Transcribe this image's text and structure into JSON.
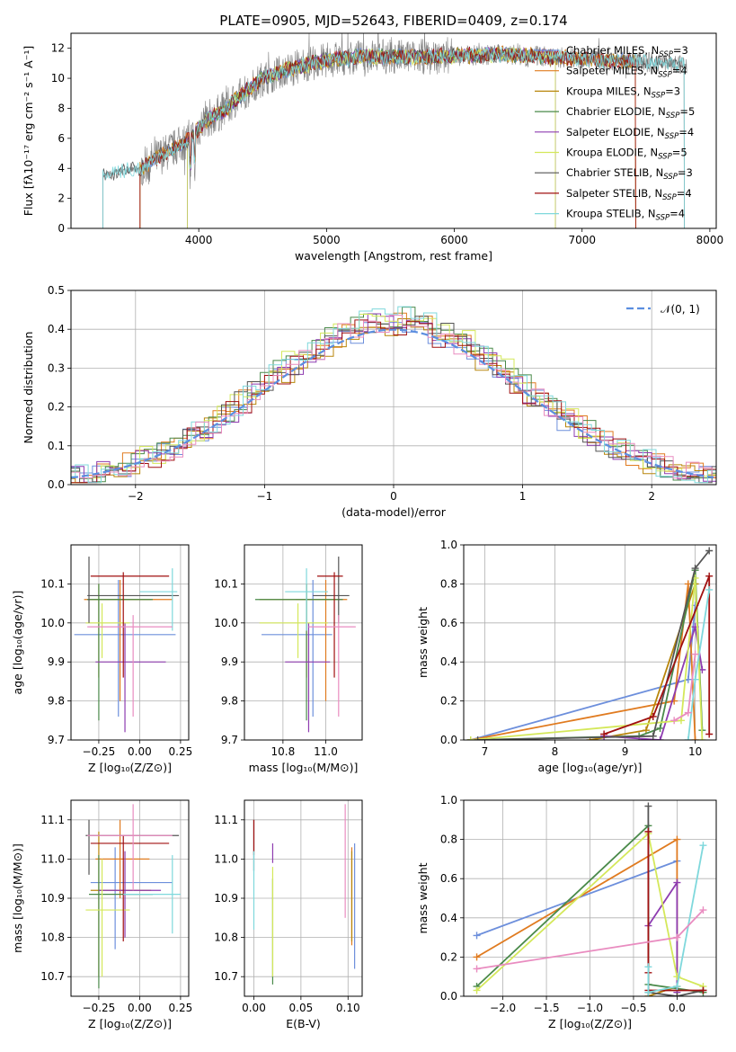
{
  "figure_title": "PLATE=0905, MJD=52643, FIBERID=0409, z=0.174",
  "colors": {
    "chabrier_miles": "#6d8fdc",
    "salpeter_miles": "#e07b20",
    "kroupa_miles": "#b8860b",
    "chabrier_elodie": "#4a8a4a",
    "salpeter_elodie": "#8e3cb0",
    "kroupa_elodie": "#d4e85a",
    "chabrier_stelib": "#555555",
    "salpeter_stelib": "#a01010",
    "kroupa_stelib": "#7fd8dc",
    "pink": "#e98cc0",
    "data": "#808080",
    "normal": "#5b8ee0",
    "grid": "#b0b0b0"
  },
  "chart_data": [
    {
      "id": "spectrum",
      "type": "line",
      "title": "PLATE=0905, MJD=52643, FIBERID=0409, z=0.174",
      "xlabel": "wavelength [Angstrom, rest frame]",
      "ylabel": "Flux [fλ10⁻¹⁷ erg cm⁻² s⁻¹ A⁻¹]",
      "xlim": [
        3000,
        8050
      ],
      "ylim": [
        0,
        13
      ],
      "xticks": [
        "4000",
        "5000",
        "6000",
        "7000",
        "8000"
      ],
      "yticks": [
        "0",
        "2",
        "4",
        "6",
        "8",
        "10",
        "12"
      ],
      "grid": false,
      "legend_position": "right",
      "legend": [
        "Chabrier MILES, N_SSP=3",
        "Salpeter MILES, N_SSP=4",
        "Kroupa MILES, N_SSP=3",
        "Chabrier ELODIE, N_SSP=5",
        "Salpeter ELODIE, N_SSP=4",
        "Kroupa ELODIE, N_SSP=5",
        "Chabrier STELIB, N_SSP=3",
        "Salpeter STELIB, N_SSP=4",
        "Kroupa STELIB, N_SSP=4"
      ],
      "continuum": {
        "x": [
          3250,
          3400,
          3550,
          3650,
          3800,
          3950,
          4050,
          4200,
          4350,
          4500,
          4700,
          5000,
          5300,
          5600,
          6000,
          6400,
          6800,
          7200,
          7500,
          7800
        ],
        "y": [
          3.5,
          3.8,
          4.0,
          4.6,
          5.3,
          6.1,
          7.2,
          7.9,
          9.0,
          10.0,
          10.6,
          11.2,
          11.5,
          11.4,
          11.5,
          11.6,
          11.4,
          11.2,
          11.1,
          10.9
        ]
      }
    },
    {
      "id": "residuals",
      "type": "histogram",
      "xlabel": "(data-model)/error",
      "ylabel": "Normed distribution",
      "xlim": [
        -2.5,
        2.5
      ],
      "ylim": [
        0,
        0.5
      ],
      "xticks": [
        "−2",
        "−1",
        "0",
        "1",
        "2"
      ],
      "yticks": [
        "0.0",
        "0.1",
        "0.2",
        "0.3",
        "0.4",
        "0.5"
      ],
      "grid": true,
      "legend_position": "top-right",
      "legend": [
        "𝒩(0, 1)"
      ],
      "bin_width": 0.1
    },
    {
      "id": "age_vs_Z",
      "type": "errorbar",
      "xlabel": "Z [log₁₀(Z/Z⊙)]",
      "ylabel": "age  [log₁₀(age/yr)]",
      "xlim": [
        -0.42,
        0.3
      ],
      "ylim": [
        9.7,
        10.2
      ],
      "xticks": [
        "−0.25",
        "0.00",
        "0.25"
      ],
      "yticks": [
        "9.7",
        "9.8",
        "9.9",
        "10.0",
        "10.1"
      ],
      "grid": true,
      "points": [
        {
          "color": "chabrier_miles",
          "x": -0.13,
          "xerr": [
            0.27,
            0.35
          ],
          "y": 9.97,
          "yerr": [
            0.21,
            0.14
          ]
        },
        {
          "color": "salpeter_miles",
          "x": -0.12,
          "xerr": [
            0.22,
            0.32
          ],
          "y": 10.06,
          "yerr": [
            0.26,
            0.05
          ]
        },
        {
          "color": "kroupa_miles",
          "x": -0.25,
          "xerr": [
            0.07,
            0.32
          ],
          "y": 10.06,
          "yerr": [
            0.2,
            0.04
          ]
        },
        {
          "color": "chabrier_elodie",
          "x": -0.25,
          "xerr": [
            0.07,
            0.33
          ],
          "y": 10.06,
          "yerr": [
            0.31,
            0.04
          ]
        },
        {
          "color": "salpeter_elodie",
          "x": -0.09,
          "xerr": [
            0.18,
            0.25
          ],
          "y": 9.9,
          "yerr": [
            0.18,
            0.1
          ]
        },
        {
          "color": "kroupa_elodie",
          "x": -0.23,
          "xerr": [
            0.1,
            0.17
          ],
          "y": 10.0,
          "yerr": [
            0.09,
            0.05
          ]
        },
        {
          "color": "chabrier_stelib",
          "x": -0.31,
          "xerr": [
            0.01,
            0.55
          ],
          "y": 10.07,
          "yerr": [
            0.07,
            0.1
          ]
        },
        {
          "color": "salpeter_stelib",
          "x": -0.1,
          "xerr": [
            0.2,
            0.28
          ],
          "y": 10.12,
          "yerr": [
            0.26,
            0.01
          ]
        },
        {
          "color": "kroupa_stelib",
          "x": 0.2,
          "xerr": [
            0.2,
            0.03
          ],
          "y": 10.08,
          "yerr": [
            0.1,
            0.06
          ]
        },
        {
          "color": "pink",
          "x": -0.04,
          "xerr": [
            0.28,
            0.24
          ],
          "y": 9.99,
          "yerr": [
            0.23,
            0.03
          ]
        }
      ]
    },
    {
      "id": "age_vs_mass",
      "type": "errorbar",
      "xlabel": "mass [log₁₀(M/M⊙)]",
      "ylabel": "",
      "xlim": [
        10.62,
        11.17
      ],
      "ylim": [
        9.7,
        10.2
      ],
      "xticks": [
        "10.8",
        "11.0"
      ],
      "yticks": [
        "9.7",
        "9.8",
        "9.9",
        "10.0",
        "10.1"
      ],
      "grid": true,
      "points": [
        {
          "color": "chabrier_miles",
          "x": 10.94,
          "xerr": [
            0.24,
            0.09
          ],
          "y": 9.97,
          "yerr": [
            0.21,
            0.14
          ]
        },
        {
          "color": "salpeter_miles",
          "x": 11.0,
          "xerr": [
            0.14,
            0.1
          ],
          "y": 10.06,
          "yerr": [
            0.26,
            0.05
          ]
        },
        {
          "color": "kroupa_miles",
          "x": 10.91,
          "xerr": [
            0.22,
            0.16
          ],
          "y": 10.06,
          "yerr": [
            0.2,
            0.04
          ]
        },
        {
          "color": "chabrier_elodie",
          "x": 10.91,
          "xerr": [
            0.24,
            0.17
          ],
          "y": 10.06,
          "yerr": [
            0.31,
            0.04
          ]
        },
        {
          "color": "salpeter_elodie",
          "x": 10.92,
          "xerr": [
            0.11,
            0.1
          ],
          "y": 9.9,
          "yerr": [
            0.18,
            0.1
          ]
        },
        {
          "color": "kroupa_elodie",
          "x": 10.87,
          "xerr": [
            0.18,
            0.14
          ],
          "y": 10.0,
          "yerr": [
            0.09,
            0.05
          ]
        },
        {
          "color": "chabrier_stelib",
          "x": 11.06,
          "xerr": [
            0.12,
            0.05
          ],
          "y": 10.07,
          "yerr": [
            0.07,
            0.1
          ]
        },
        {
          "color": "salpeter_stelib",
          "x": 11.04,
          "xerr": [
            0.08,
            0.04
          ],
          "y": 10.12,
          "yerr": [
            0.26,
            0.01
          ]
        },
        {
          "color": "kroupa_stelib",
          "x": 10.91,
          "xerr": [
            0.1,
            0.1
          ],
          "y": 10.08,
          "yerr": [
            0.1,
            0.06
          ]
        },
        {
          "color": "pink",
          "x": 11.06,
          "xerr": [
            0.14,
            0.08
          ],
          "y": 9.99,
          "yerr": [
            0.23,
            0.03
          ]
        }
      ]
    },
    {
      "id": "mass_weight_vs_age",
      "type": "line",
      "xlabel": "age  [log₁₀(age/yr)]",
      "ylabel": "mass weight",
      "xlim": [
        6.7,
        10.3
      ],
      "ylim": [
        0,
        1
      ],
      "xticks": [
        "7",
        "8",
        "9",
        "10"
      ],
      "yticks": [
        "0.0",
        "0.2",
        "0.4",
        "0.6",
        "0.8",
        "1.0"
      ],
      "grid": true,
      "series": [
        {
          "color": "chabrier_miles",
          "x": [
            6.8,
            9.9,
            10.0
          ],
          "y": [
            0.0,
            0.31,
            0.69
          ]
        },
        {
          "color": "salpeter_miles",
          "x": [
            6.8,
            9.7,
            9.9,
            10.0
          ],
          "y": [
            0.0,
            0.2,
            0.8,
            0.0
          ]
        },
        {
          "color": "kroupa_miles",
          "x": [
            8.5,
            9.3,
            10.0
          ],
          "y": [
            0.0,
            0.05,
            0.8
          ]
        },
        {
          "color": "chabrier_elodie",
          "x": [
            6.8,
            9.2,
            9.5,
            10.0,
            10.1
          ],
          "y": [
            0.0,
            0.02,
            0.06,
            0.87,
            0.05
          ]
        },
        {
          "color": "salpeter_elodie",
          "x": [
            8.7,
            9.5,
            10.0,
            10.1
          ],
          "y": [
            0.02,
            0.0,
            0.58,
            0.36
          ]
        },
        {
          "color": "kroupa_elodie",
          "x": [
            6.8,
            9.8,
            10.0,
            10.1
          ],
          "y": [
            0.0,
            0.1,
            0.83,
            0.0
          ]
        },
        {
          "color": "chabrier_stelib",
          "x": [
            6.9,
            9.4,
            10.0,
            10.2
          ],
          "y": [
            0.0,
            0.02,
            0.88,
            0.97
          ]
        },
        {
          "color": "salpeter_stelib",
          "x": [
            8.7,
            9.4,
            10.2,
            10.2
          ],
          "y": [
            0.03,
            0.12,
            0.84,
            0.03
          ]
        },
        {
          "color": "kroupa_stelib",
          "x": [
            9.9,
            10.0,
            10.2
          ],
          "y": [
            0.0,
            0.31,
            0.77
          ]
        },
        {
          "color": "pink",
          "x": [
            9.7,
            9.9,
            10.0
          ],
          "y": [
            0.1,
            0.14,
            0.44
          ]
        }
      ]
    },
    {
      "id": "mass_vs_Z",
      "type": "errorbar",
      "xlabel": "Z [log₁₀(Z/Z⊙)]",
      "ylabel": "mass [log₁₀(M/M⊙)]",
      "xlim": [
        -0.42,
        0.3
      ],
      "ylim": [
        10.65,
        11.15
      ],
      "xticks": [
        "−0.25",
        "0.00",
        "0.25"
      ],
      "yticks": [
        "10.7",
        "10.8",
        "10.9",
        "11.0",
        "11.1"
      ],
      "grid": true,
      "points": [
        {
          "color": "chabrier_miles",
          "x": -0.15,
          "xerr": [
            0.15,
            0.35
          ],
          "y": 10.94,
          "yerr": [
            0.17,
            0.09
          ]
        },
        {
          "color": "salpeter_miles",
          "x": -0.12,
          "xerr": [
            0.15,
            0.18
          ],
          "y": 11.0,
          "yerr": [
            0.1,
            0.1
          ]
        },
        {
          "color": "kroupa_miles",
          "x": -0.25,
          "xerr": [
            0.05,
            0.32
          ],
          "y": 10.92,
          "yerr": [
            0.22,
            0.15
          ]
        },
        {
          "color": "chabrier_elodie",
          "x": -0.25,
          "xerr": [
            0.06,
            0.33
          ],
          "y": 10.91,
          "yerr": [
            0.24,
            0.1
          ]
        },
        {
          "color": "salpeter_elodie",
          "x": -0.09,
          "xerr": [
            0.16,
            0.22
          ],
          "y": 10.92,
          "yerr": [
            0.12,
            0.1
          ]
        },
        {
          "color": "kroupa_elodie",
          "x": -0.23,
          "xerr": [
            0.1,
            0.17
          ],
          "y": 10.87,
          "yerr": [
            0.17,
            0.13
          ]
        },
        {
          "color": "chabrier_stelib",
          "x": -0.31,
          "xerr": [
            0.02,
            0.55
          ],
          "y": 11.06,
          "yerr": [
            0.1,
            0.04
          ]
        },
        {
          "color": "salpeter_stelib",
          "x": -0.1,
          "xerr": [
            0.2,
            0.28
          ],
          "y": 11.04,
          "yerr": [
            0.25,
            0.02
          ]
        },
        {
          "color": "kroupa_stelib",
          "x": 0.2,
          "xerr": [
            0.3,
            0.05
          ],
          "y": 10.91,
          "yerr": [
            0.1,
            0.1
          ]
        },
        {
          "color": "pink",
          "x": -0.04,
          "xerr": [
            0.28,
            0.24
          ],
          "y": 11.06,
          "yerr": [
            0.14,
            0.08
          ]
        }
      ]
    },
    {
      "id": "mass_vs_ebv",
      "type": "errorbar",
      "xlabel": "E(B-V)",
      "ylabel": "",
      "xlim": [
        -0.01,
        0.115
      ],
      "ylim": [
        10.65,
        11.15
      ],
      "xticks": [
        "0.00",
        "0.05",
        "0.10"
      ],
      "yticks": [
        "10.7",
        "10.8",
        "10.9",
        "11.0",
        "11.1"
      ],
      "grid": true,
      "points": [
        {
          "color": "chabrier_miles",
          "x": 0.107,
          "xerr": [
            0,
            0
          ],
          "y": 10.94,
          "yerr": [
            0.22,
            0.1
          ]
        },
        {
          "color": "salpeter_miles",
          "x": 0.104,
          "xerr": [
            0,
            0
          ],
          "y": 11.0,
          "yerr": [
            0.22,
            0.03
          ]
        },
        {
          "color": "kroupa_miles",
          "x": 0.104,
          "xerr": [
            0,
            0
          ],
          "y": 11.0,
          "yerr": [
            0.21,
            0.02
          ]
        },
        {
          "color": "chabrier_elodie",
          "x": 0.02,
          "xerr": [
            0,
            0
          ],
          "y": 10.95,
          "yerr": [
            0.27,
            0.0
          ]
        },
        {
          "color": "salpeter_elodie",
          "x": 0.02,
          "xerr": [
            0,
            0
          ],
          "y": 11.0,
          "yerr": [
            0.01,
            0.04
          ]
        },
        {
          "color": "kroupa_elodie",
          "x": 0.02,
          "xerr": [
            0,
            0
          ],
          "y": 10.88,
          "yerr": [
            0.18,
            0.1
          ]
        },
        {
          "color": "chabrier_stelib",
          "x": 0.0,
          "xerr": [
            0,
            0
          ],
          "y": 11.02,
          "yerr": [
            0.05,
            0.08
          ]
        },
        {
          "color": "salpeter_stelib",
          "x": 0.0,
          "xerr": [
            0,
            0
          ],
          "y": 11.06,
          "yerr": [
            0.05,
            0.04
          ]
        },
        {
          "color": "kroupa_stelib",
          "x": 0.0,
          "xerr": [
            0,
            0
          ],
          "y": 10.92,
          "yerr": [
            0.1,
            0.1
          ]
        },
        {
          "color": "pink",
          "x": 0.097,
          "xerr": [
            0,
            0
          ],
          "y": 11.0,
          "yerr": [
            0.15,
            0.14
          ]
        }
      ]
    },
    {
      "id": "mass_weight_vs_Z",
      "type": "line",
      "xlabel": "Z [log₁₀(Z/Z⊙)]",
      "ylabel": "mass weight",
      "xlim": [
        -2.45,
        0.45
      ],
      "ylim": [
        0,
        1
      ],
      "xticks": [
        "−2.0",
        "−1.5",
        "−1.0",
        "−0.5",
        "0.0"
      ],
      "yticks": [
        "0.0",
        "0.2",
        "0.4",
        "0.6",
        "0.8",
        "1.0"
      ],
      "grid": true,
      "series": [
        {
          "color": "chabrier_miles",
          "x": [
            -2.3,
            0.0
          ],
          "y": [
            0.31,
            0.69
          ]
        },
        {
          "color": "salpeter_miles",
          "x": [
            -2.3,
            0.0,
            0.0
          ],
          "y": [
            0.2,
            0.8,
            0.0
          ]
        },
        {
          "color": "kroupa_miles",
          "x": [
            -0.33,
            0.0
          ],
          "y": [
            0.0,
            0.05
          ]
        },
        {
          "color": "chabrier_elodie",
          "x": [
            -2.3,
            -0.33,
            -0.33,
            0.3
          ],
          "y": [
            0.05,
            0.87,
            0.06,
            0.02
          ]
        },
        {
          "color": "salpeter_elodie",
          "x": [
            -0.33,
            0.0,
            0.0
          ],
          "y": [
            0.36,
            0.58,
            0.02
          ]
        },
        {
          "color": "kroupa_elodie",
          "x": [
            -2.3,
            -0.33,
            0.0,
            0.3
          ],
          "y": [
            0.03,
            0.83,
            0.1,
            0.05
          ]
        },
        {
          "color": "chabrier_stelib",
          "x": [
            -0.33,
            -0.33,
            0.0,
            0.3
          ],
          "y": [
            0.97,
            0.02,
            0.0,
            0.03
          ]
        },
        {
          "color": "salpeter_stelib",
          "x": [
            -0.33,
            -0.33,
            -0.33,
            0.3
          ],
          "y": [
            0.84,
            0.12,
            0.03,
            0.03
          ]
        },
        {
          "color": "kroupa_stelib",
          "x": [
            -0.33,
            -0.33,
            0.0,
            0.3
          ],
          "y": [
            0.15,
            0.02,
            0.05,
            0.77
          ]
        },
        {
          "color": "pink",
          "x": [
            -2.3,
            0.0,
            0.3
          ],
          "y": [
            0.14,
            0.3,
            0.44
          ]
        }
      ]
    }
  ]
}
